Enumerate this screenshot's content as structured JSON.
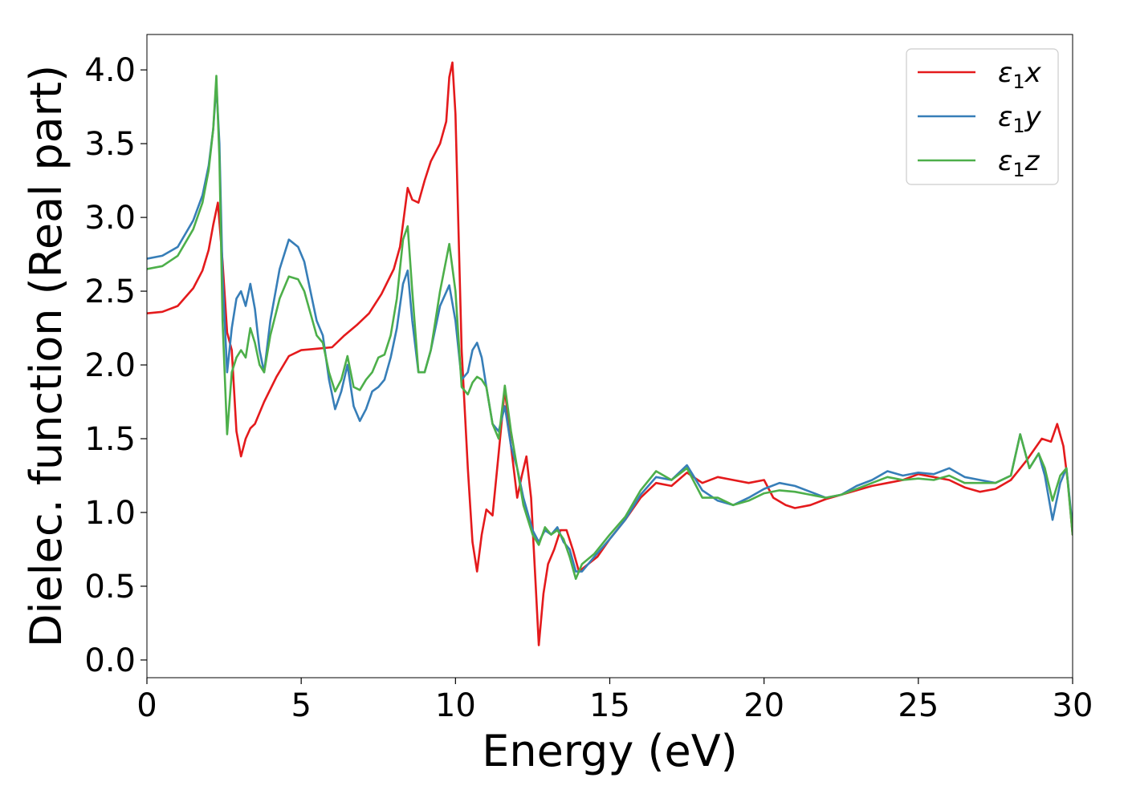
{
  "chart_data": {
    "type": "line",
    "title": "",
    "xlabel": "Energy (eV)",
    "ylabel": "Dielec. function (Real part)",
    "xlim": [
      0,
      30
    ],
    "ylim": [
      -0.12,
      4.24
    ],
    "xticks": [
      0,
      5,
      10,
      15,
      20,
      25,
      30
    ],
    "xtick_labels": [
      "0",
      "5",
      "10",
      "15",
      "20",
      "25",
      "30"
    ],
    "yticks": [
      0.0,
      0.5,
      1.0,
      1.5,
      2.0,
      2.5,
      3.0,
      3.5,
      4.0
    ],
    "ytick_labels": [
      "0.0",
      "0.5",
      "1.0",
      "1.5",
      "2.0",
      "2.5",
      "3.0",
      "3.5",
      "4.0"
    ],
    "grid": false,
    "legend_position": "top-right",
    "series": [
      {
        "name": "ε1x",
        "legend_base": "ε",
        "legend_sub": "1",
        "legend_suffix": "x",
        "color": "#e41a1c",
        "x": [
          0,
          0.5,
          1.0,
          1.5,
          1.8,
          2.0,
          2.15,
          2.3,
          2.45,
          2.6,
          2.75,
          2.9,
          3.05,
          3.2,
          3.35,
          3.5,
          3.8,
          4.2,
          4.6,
          5.0,
          5.5,
          6.0,
          6.4,
          6.8,
          7.2,
          7.6,
          8.0,
          8.2,
          8.45,
          8.6,
          8.8,
          9.0,
          9.2,
          9.5,
          9.7,
          9.8,
          9.9,
          10.0,
          10.2,
          10.4,
          10.55,
          10.7,
          10.85,
          11.0,
          11.2,
          11.4,
          11.6,
          11.8,
          12.0,
          12.15,
          12.3,
          12.45,
          12.6,
          12.7,
          12.85,
          13.0,
          13.2,
          13.4,
          13.6,
          13.8,
          14.0,
          14.3,
          14.6,
          15.0,
          15.5,
          16.0,
          16.5,
          17.0,
          17.5,
          18.0,
          18.5,
          19.0,
          19.5,
          20.0,
          20.3,
          20.7,
          21.0,
          21.5,
          22.0,
          22.5,
          23.0,
          23.5,
          24.0,
          24.5,
          25.0,
          25.5,
          26.0,
          26.5,
          27.0,
          27.5,
          28.0,
          28.5,
          29.0,
          29.3,
          29.5,
          29.7,
          29.85,
          30.0
        ],
        "y": [
          2.35,
          2.36,
          2.4,
          2.52,
          2.64,
          2.78,
          2.95,
          3.1,
          2.7,
          2.22,
          2.1,
          1.55,
          1.38,
          1.5,
          1.57,
          1.6,
          1.75,
          1.92,
          2.06,
          2.1,
          2.11,
          2.12,
          2.2,
          2.27,
          2.35,
          2.48,
          2.65,
          2.8,
          3.2,
          3.12,
          3.1,
          3.25,
          3.38,
          3.5,
          3.65,
          3.95,
          4.05,
          3.7,
          2.1,
          1.3,
          0.8,
          0.6,
          0.85,
          1.02,
          0.98,
          1.4,
          1.84,
          1.45,
          1.1,
          1.25,
          1.38,
          1.1,
          0.5,
          0.1,
          0.45,
          0.65,
          0.75,
          0.88,
          0.88,
          0.75,
          0.6,
          0.65,
          0.7,
          0.82,
          0.95,
          1.1,
          1.2,
          1.18,
          1.27,
          1.2,
          1.24,
          1.22,
          1.2,
          1.22,
          1.1,
          1.05,
          1.03,
          1.05,
          1.09,
          1.12,
          1.15,
          1.18,
          1.2,
          1.22,
          1.26,
          1.24,
          1.22,
          1.17,
          1.14,
          1.16,
          1.22,
          1.35,
          1.5,
          1.48,
          1.6,
          1.45,
          1.2,
          0.85
        ]
      },
      {
        "name": "ε1y",
        "legend_base": "ε",
        "legend_sub": "1",
        "legend_suffix": "y",
        "color": "#377eb8",
        "x": [
          0,
          0.5,
          1.0,
          1.5,
          1.8,
          2.0,
          2.15,
          2.25,
          2.35,
          2.45,
          2.6,
          2.75,
          2.9,
          3.05,
          3.2,
          3.35,
          3.5,
          3.65,
          3.8,
          4.0,
          4.3,
          4.6,
          4.9,
          5.1,
          5.3,
          5.5,
          5.7,
          5.9,
          6.1,
          6.3,
          6.5,
          6.7,
          6.9,
          7.1,
          7.3,
          7.5,
          7.7,
          7.9,
          8.1,
          8.3,
          8.45,
          8.6,
          8.8,
          9.0,
          9.2,
          9.5,
          9.8,
          10.0,
          10.2,
          10.4,
          10.55,
          10.7,
          10.85,
          11.0,
          11.2,
          11.4,
          11.6,
          11.8,
          12.0,
          12.2,
          12.5,
          12.7,
          12.9,
          13.1,
          13.3,
          13.5,
          13.7,
          13.9,
          14.1,
          14.5,
          15.0,
          15.5,
          16.0,
          16.5,
          17.0,
          17.5,
          18.0,
          18.5,
          19.0,
          19.5,
          20.0,
          20.5,
          21.0,
          21.5,
          22.0,
          22.5,
          23.0,
          23.5,
          24.0,
          24.5,
          25.0,
          25.5,
          26.0,
          26.5,
          27.0,
          27.5,
          28.0,
          28.3,
          28.6,
          28.9,
          29.1,
          29.35,
          29.6,
          29.8,
          30.0
        ],
        "y": [
          2.72,
          2.74,
          2.8,
          2.98,
          3.15,
          3.35,
          3.6,
          3.9,
          3.5,
          2.6,
          1.95,
          2.25,
          2.45,
          2.5,
          2.4,
          2.55,
          2.38,
          2.1,
          1.95,
          2.3,
          2.65,
          2.85,
          2.8,
          2.7,
          2.5,
          2.3,
          2.2,
          1.9,
          1.7,
          1.82,
          2.0,
          1.72,
          1.62,
          1.7,
          1.82,
          1.85,
          1.9,
          2.05,
          2.25,
          2.55,
          2.64,
          2.3,
          1.95,
          1.95,
          2.1,
          2.4,
          2.54,
          2.3,
          1.9,
          1.95,
          2.1,
          2.15,
          2.05,
          1.85,
          1.6,
          1.55,
          1.72,
          1.45,
          1.3,
          1.1,
          0.88,
          0.8,
          0.88,
          0.85,
          0.9,
          0.8,
          0.75,
          0.6,
          0.6,
          0.7,
          0.82,
          0.95,
          1.12,
          1.24,
          1.22,
          1.32,
          1.15,
          1.08,
          1.05,
          1.1,
          1.16,
          1.2,
          1.18,
          1.14,
          1.1,
          1.12,
          1.18,
          1.22,
          1.28,
          1.25,
          1.27,
          1.26,
          1.3,
          1.24,
          1.22,
          1.2,
          1.25,
          1.53,
          1.3,
          1.4,
          1.25,
          0.95,
          1.2,
          1.3,
          0.9
        ]
      },
      {
        "name": "ε1z",
        "legend_base": "ε",
        "legend_sub": "1",
        "legend_suffix": "z",
        "color": "#4daf4a",
        "x": [
          0,
          0.5,
          1.0,
          1.5,
          1.8,
          2.0,
          2.15,
          2.25,
          2.35,
          2.45,
          2.6,
          2.75,
          2.9,
          3.05,
          3.2,
          3.35,
          3.5,
          3.65,
          3.8,
          4.0,
          4.3,
          4.6,
          4.9,
          5.1,
          5.3,
          5.5,
          5.7,
          5.9,
          6.1,
          6.3,
          6.5,
          6.7,
          6.9,
          7.1,
          7.3,
          7.5,
          7.7,
          7.9,
          8.1,
          8.3,
          8.45,
          8.6,
          8.8,
          9.0,
          9.2,
          9.5,
          9.8,
          10.0,
          10.2,
          10.4,
          10.55,
          10.7,
          10.85,
          11.0,
          11.2,
          11.4,
          11.6,
          11.8,
          12.0,
          12.2,
          12.5,
          12.7,
          12.9,
          13.1,
          13.3,
          13.5,
          13.7,
          13.9,
          14.1,
          14.5,
          15.0,
          15.5,
          16.0,
          16.5,
          17.0,
          17.5,
          18.0,
          18.5,
          19.0,
          19.5,
          20.0,
          20.5,
          21.0,
          21.5,
          22.0,
          22.5,
          23.0,
          23.5,
          24.0,
          24.5,
          25.0,
          25.5,
          26.0,
          26.5,
          27.0,
          27.5,
          28.0,
          28.3,
          28.6,
          28.9,
          29.1,
          29.35,
          29.6,
          29.8,
          30.0
        ],
        "y": [
          2.65,
          2.67,
          2.74,
          2.92,
          3.1,
          3.32,
          3.6,
          3.96,
          3.4,
          2.3,
          1.53,
          1.95,
          2.05,
          2.1,
          2.05,
          2.25,
          2.15,
          2.0,
          1.95,
          2.2,
          2.45,
          2.6,
          2.58,
          2.5,
          2.35,
          2.2,
          2.15,
          1.95,
          1.82,
          1.9,
          2.06,
          1.85,
          1.83,
          1.9,
          1.95,
          2.05,
          2.07,
          2.2,
          2.45,
          2.85,
          2.94,
          2.5,
          1.95,
          1.95,
          2.1,
          2.5,
          2.82,
          2.5,
          1.85,
          1.8,
          1.88,
          1.92,
          1.9,
          1.85,
          1.6,
          1.5,
          1.86,
          1.55,
          1.3,
          1.05,
          0.85,
          0.78,
          0.9,
          0.85,
          0.88,
          0.82,
          0.7,
          0.55,
          0.65,
          0.72,
          0.85,
          0.97,
          1.15,
          1.28,
          1.22,
          1.3,
          1.1,
          1.1,
          1.05,
          1.08,
          1.13,
          1.15,
          1.14,
          1.12,
          1.1,
          1.12,
          1.16,
          1.2,
          1.24,
          1.22,
          1.23,
          1.22,
          1.25,
          1.2,
          1.2,
          1.2,
          1.25,
          1.53,
          1.3,
          1.4,
          1.3,
          1.08,
          1.25,
          1.3,
          0.85
        ]
      }
    ]
  }
}
